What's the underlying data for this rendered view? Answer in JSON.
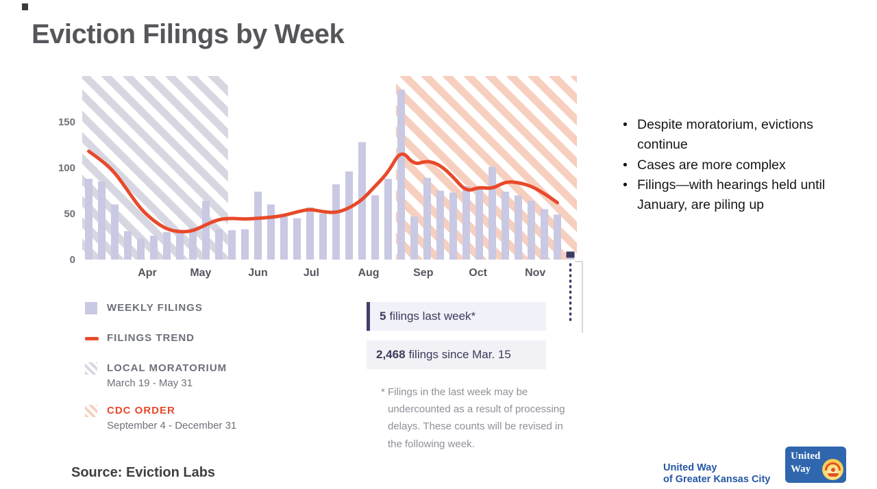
{
  "slide": {
    "title": "Eviction Filings by Week",
    "source": "Source: Eviction Labs",
    "bullets": [
      "Despite moratorium, evictions continue",
      "Cases are more complex",
      "Filings—with hearings held until January, are piling up"
    ]
  },
  "legend": {
    "weekly_filings": "WEEKLY FILINGS",
    "filings_trend": "FILINGS TREND",
    "local_moratorium": "LOCAL MORATORIUM",
    "local_moratorium_dates": "March 19 - May 31",
    "cdc_order": "CDC ORDER",
    "cdc_order_dates": "September 4 - December 31"
  },
  "callouts": {
    "last_week_value": "5",
    "last_week_label": "filings last week*",
    "since_value": "2,468",
    "since_label": "filings since Mar. 15",
    "footnote": "* Filings in the last week may be undercounted as a result of processing delays. These counts will be revised in the following week."
  },
  "branding": {
    "org_line1": "United Way",
    "org_line2": "of Greater Kansas City",
    "logo_line1": "United",
    "logo_line2": "Way"
  },
  "theme": {
    "bar_color": "#c9c9e3",
    "trend_color": "#e8492a",
    "moratorium_hatch": "#d7d7e2",
    "cdc_hatch": "#f7cfbf",
    "axis_label_color": "#6e6e78",
    "month_label_color": "#55555f",
    "marker_color": "#3b3b63",
    "bracket_color": "#cacad4"
  },
  "chart_data": {
    "type": "bar",
    "title": "Eviction Filings by Week",
    "xlabel": "",
    "ylabel": "",
    "ylim": [
      0,
      200
    ],
    "yticks": [
      0,
      50,
      100,
      150
    ],
    "grid": false,
    "legend_position": "below-left",
    "month_ticks": [
      {
        "label": "Apr",
        "pos": 5.0
      },
      {
        "label": "May",
        "pos": 9.1
      },
      {
        "label": "Jun",
        "pos": 13.5
      },
      {
        "label": "Jul",
        "pos": 17.6
      },
      {
        "label": "Aug",
        "pos": 22.0
      },
      {
        "label": "Sep",
        "pos": 26.2
      },
      {
        "label": "Oct",
        "pos": 30.4
      },
      {
        "label": "Nov",
        "pos": 34.8
      }
    ],
    "series": [
      {
        "name": "Weekly filings",
        "type": "bar",
        "values": [
          88,
          85,
          60,
          31,
          23,
          26,
          30,
          30,
          35,
          64,
          33,
          32,
          33,
          74,
          60,
          47,
          45,
          57,
          50,
          82,
          96,
          128,
          70,
          88,
          185,
          47,
          89,
          75,
          73,
          80,
          78,
          101,
          74,
          70,
          64,
          55,
          49,
          5
        ]
      },
      {
        "name": "Filings trend",
        "type": "line",
        "values": [
          118,
          108,
          95,
          75,
          55,
          42,
          33,
          30,
          31,
          38,
          44,
          45,
          44,
          45,
          46,
          48,
          52,
          55,
          52,
          51,
          56,
          65,
          80,
          95,
          120,
          103,
          108,
          103,
          90,
          74,
          79,
          77,
          85,
          84,
          80,
          72,
          62
        ]
      }
    ],
    "regions": [
      {
        "name": "local_moratorium",
        "hatch": "gray",
        "from": 0,
        "to": 11.2,
        "dates": "March 19 - May 31"
      },
      {
        "name": "cdc_order",
        "hatch": "orange",
        "from": 24.1,
        "to": 38,
        "dates": "September 4 - December 31"
      }
    ],
    "last_week_marker": {
      "pos": 37,
      "value": 5
    }
  }
}
